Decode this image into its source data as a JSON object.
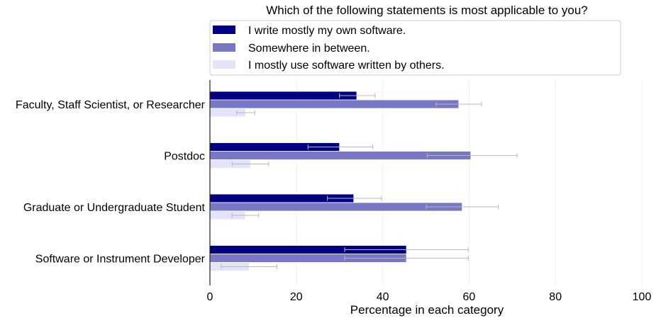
{
  "chart_data": {
    "type": "bar",
    "orientation": "horizontal",
    "title": "Which of the following statements is most applicable to you?",
    "xlabel": "Percentage in each category",
    "ylabel": "",
    "xlim": [
      0,
      100
    ],
    "xticks": [
      0,
      20,
      40,
      60,
      80,
      100
    ],
    "grid": true,
    "legend_position": "top",
    "categories": [
      "Faculty, Staff Scientist, or Researcher",
      "Postdoc",
      "Graduate or Undergraduate Student",
      "Software or Instrument Developer"
    ],
    "series": [
      {
        "name": "I write mostly my own software.",
        "color": "#000080",
        "values": [
          34,
          30,
          33.3,
          45.5
        ],
        "error_low": [
          30,
          22.7,
          27.2,
          31.2
        ],
        "error_high": [
          38.2,
          37.7,
          39.7,
          59.8
        ]
      },
      {
        "name": "Somewhere in between.",
        "color": "#7777c6",
        "values": [
          57.6,
          60.4,
          58.4,
          45.5
        ],
        "error_low": [
          52.4,
          50.3,
          50.1,
          31.2
        ],
        "error_high": [
          62.9,
          71.1,
          66.8,
          59.8
        ]
      },
      {
        "name": "I mostly use software written by others.",
        "color": "#e3e3fa",
        "values": [
          8.3,
          9.4,
          8.2,
          9.1
        ],
        "error_low": [
          6.2,
          5.2,
          5.1,
          2.6
        ],
        "error_high": [
          10.4,
          13.6,
          11.3,
          15.5
        ]
      }
    ]
  }
}
